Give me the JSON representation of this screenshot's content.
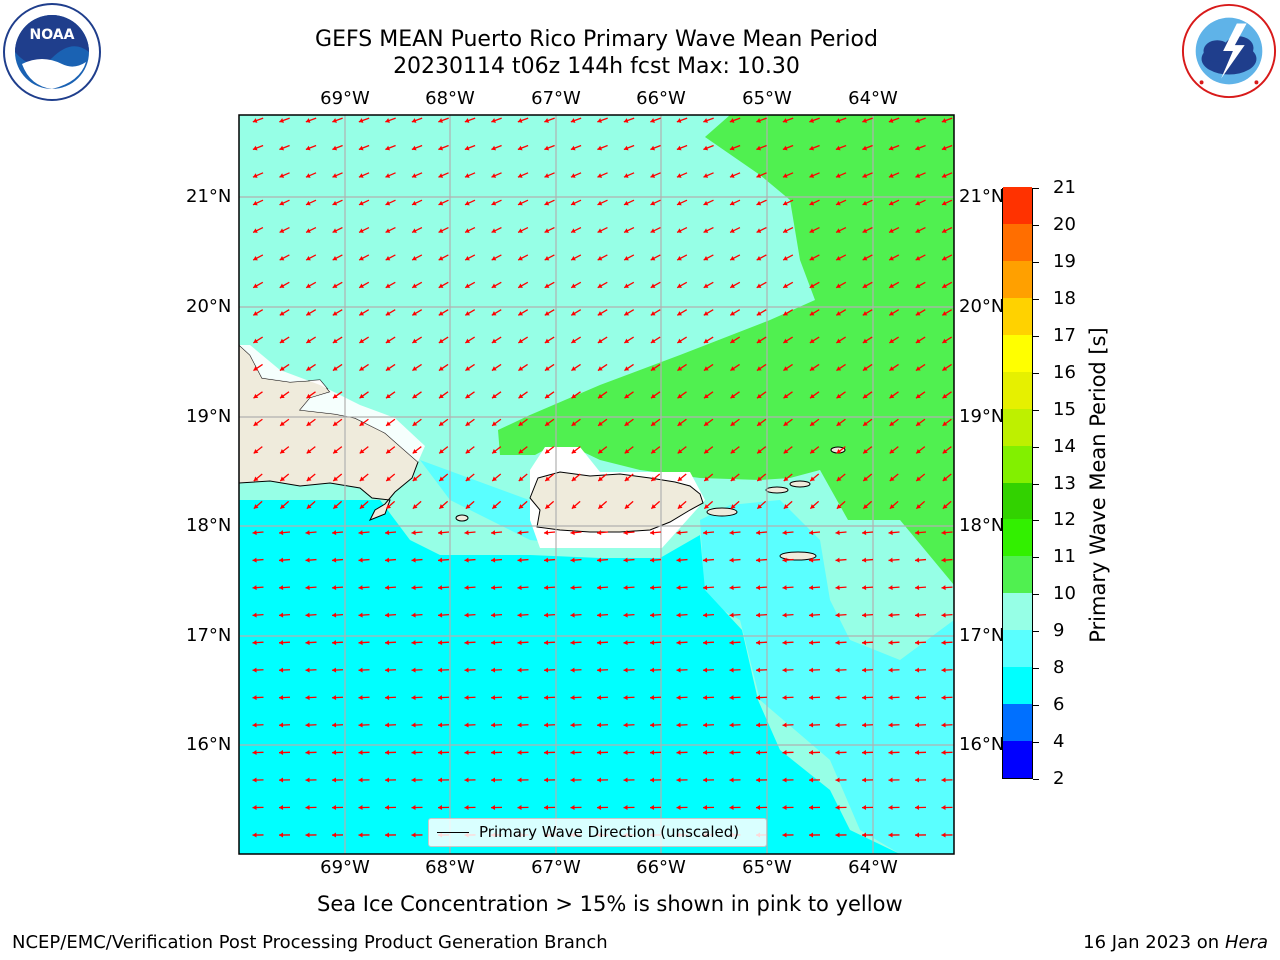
{
  "title_line1": "GEFS MEAN Puerto Rico Primary Wave Mean Period",
  "title_line2": "20230114 t06z 144h fcst   Max: 10.30",
  "logos": {
    "left": "noaa-logo",
    "left_text": "NOAA",
    "right": "nws-logo"
  },
  "map": {
    "lon_ticks": [
      "69°W",
      "68°W",
      "67°W",
      "66°W",
      "65°W",
      "64°W"
    ],
    "lat_ticks": [
      "21°N",
      "20°N",
      "19°N",
      "18°N",
      "17°N",
      "16°N"
    ],
    "legend_label": "Primary Wave Direction (unscaled)",
    "arrow_color": "#ff0000",
    "land_color": "#efebdc"
  },
  "colorbar": {
    "title": "Primary Wave Mean Period [s]",
    "labels": [
      "2",
      "4",
      "6",
      "8",
      "9",
      "10",
      "11",
      "12",
      "13",
      "14",
      "15",
      "16",
      "17",
      "18",
      "19",
      "20",
      "21"
    ],
    "colors": [
      "#0000ff",
      "#0070ff",
      "#00ffff",
      "#5affff",
      "#96ffe6",
      "#50f050",
      "#32f000",
      "#32d200",
      "#82f000",
      "#bef000",
      "#e6f000",
      "#ffff00",
      "#ffd200",
      "#ffa000",
      "#ff6e00",
      "#ff3200",
      "#ff0000"
    ]
  },
  "footnote": "Sea Ice Concentration > 15% is shown in pink to yellow",
  "credit_left": "NCEP/EMC/Verification Post Processing Product Generation Branch",
  "credit_right_date": "16 Jan 2023 on",
  "credit_right_host": "Hera"
}
